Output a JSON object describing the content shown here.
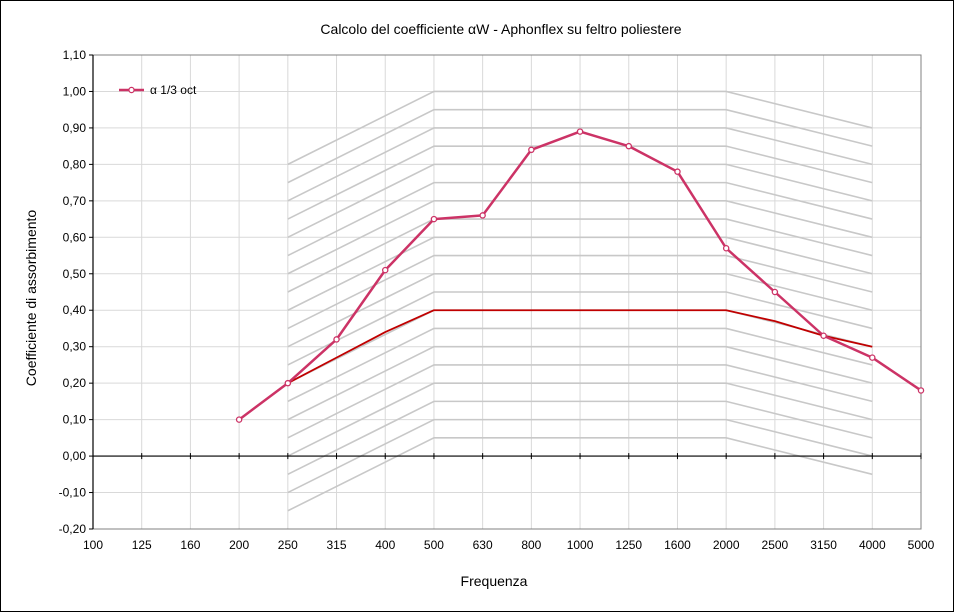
{
  "chart_data": {
    "type": "line",
    "title": "Calcolo del coefficiente αW - Aphonflex  su feltro poliestere",
    "xlabel": "Frequenza",
    "ylabel": "Coefficiente di assorbimento",
    "categories": [
      "100",
      "125",
      "160",
      "200",
      "250",
      "315",
      "400",
      "500",
      "630",
      "800",
      "1000",
      "1250",
      "1600",
      "2000",
      "2500",
      "3150",
      "4000",
      "5000"
    ],
    "ylim": [
      -0.2,
      1.1
    ],
    "yticks": [
      "-0,20",
      "-0,10",
      "0,00",
      "0,10",
      "0,20",
      "0,30",
      "0,40",
      "0,50",
      "0,60",
      "0,70",
      "0,80",
      "0,90",
      "1,00",
      "1,10"
    ],
    "grid": true,
    "legend_position": "top-left",
    "series": [
      {
        "name": "α 1/3 oct",
        "color": "#cc3366",
        "marker": "circle",
        "values": [
          null,
          null,
          null,
          0.1,
          0.2,
          0.32,
          0.51,
          0.65,
          0.66,
          0.84,
          0.89,
          0.85,
          0.78,
          0.57,
          0.45,
          0.33,
          0.27,
          0.18
        ]
      },
      {
        "name": "",
        "color": "#c00000",
        "marker": "none",
        "values": [
          null,
          null,
          null,
          null,
          0.2,
          0.27,
          0.34,
          0.4,
          0.4,
          0.4,
          0.4,
          0.4,
          0.4,
          0.4,
          0.37,
          0.33,
          0.3,
          null
        ]
      }
    ],
    "reference_template": {
      "color": "#c8c8c8",
      "categories": [
        "250",
        "500",
        "2000",
        "4000"
      ],
      "shape": [
        0.8,
        1.0,
        1.0,
        0.9
      ],
      "shifts": [
        0.0,
        -0.05,
        -0.1,
        -0.15,
        -0.2,
        -0.25,
        -0.3,
        -0.35,
        -0.4,
        -0.45,
        -0.5,
        -0.55,
        -0.6,
        -0.65,
        -0.7,
        -0.75,
        -0.8,
        -0.85,
        -0.9,
        -0.95
      ]
    }
  }
}
